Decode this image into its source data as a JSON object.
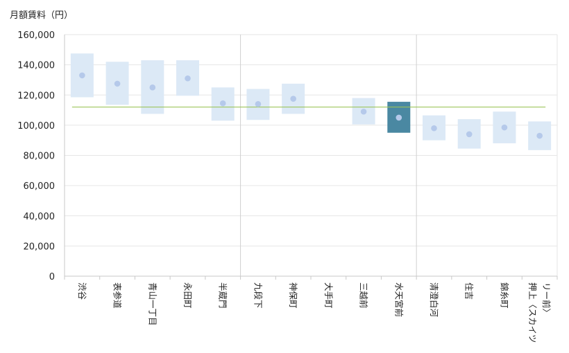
{
  "chart_data": {
    "type": "floating-bar",
    "title": "",
    "ylabel": "月額賃料（円）",
    "xlabel": "",
    "ylim": [
      0,
      160000
    ],
    "yticks": [
      0,
      20000,
      40000,
      60000,
      80000,
      100000,
      120000,
      140000,
      160000
    ],
    "ytick_labels": [
      "0",
      "20,000",
      "40,000",
      "60,000",
      "80,000",
      "100,000",
      "120,000",
      "140,000",
      "160,000"
    ],
    "grid": true,
    "categories": [
      [
        "渋谷"
      ],
      [
        "表参道"
      ],
      [
        "青山一丁目"
      ],
      [
        "永田町"
      ],
      [
        "半蔵門"
      ],
      [
        "九段下"
      ],
      [
        "神保町"
      ],
      [
        "大手町"
      ],
      [
        "三越前"
      ],
      [
        "水天宮前"
      ],
      [
        "清澄白河"
      ],
      [
        "住吉"
      ],
      [
        "錦糸町"
      ],
      [
        "押上〈スカイツ",
        "リー前〉"
      ]
    ],
    "range_low": [
      118500,
      113500,
      107500,
      119500,
      103000,
      103500,
      107500,
      null,
      100500,
      95000,
      90000,
      84500,
      88000,
      83500
    ],
    "range_high": [
      147500,
      142000,
      143000,
      143000,
      125000,
      124000,
      127500,
      null,
      118000,
      115500,
      106500,
      104000,
      109000,
      102500
    ],
    "average": [
      133000,
      127500,
      125000,
      131000,
      114500,
      114000,
      117500,
      null,
      109000,
      105000,
      98000,
      94000,
      98500,
      93000
    ],
    "highlight_index": 9,
    "reference_line": 112000,
    "group_separators_after": [
      4,
      9
    ],
    "colors": {
      "range": "#dce9f6",
      "range_highlight": "#4a88a2",
      "average_dot": "#b5c9ea",
      "reference_line": "#9bc45a",
      "grid": "#e6e6e6",
      "separator": "#d0d0d0",
      "axis": "#c8c8c8"
    }
  }
}
